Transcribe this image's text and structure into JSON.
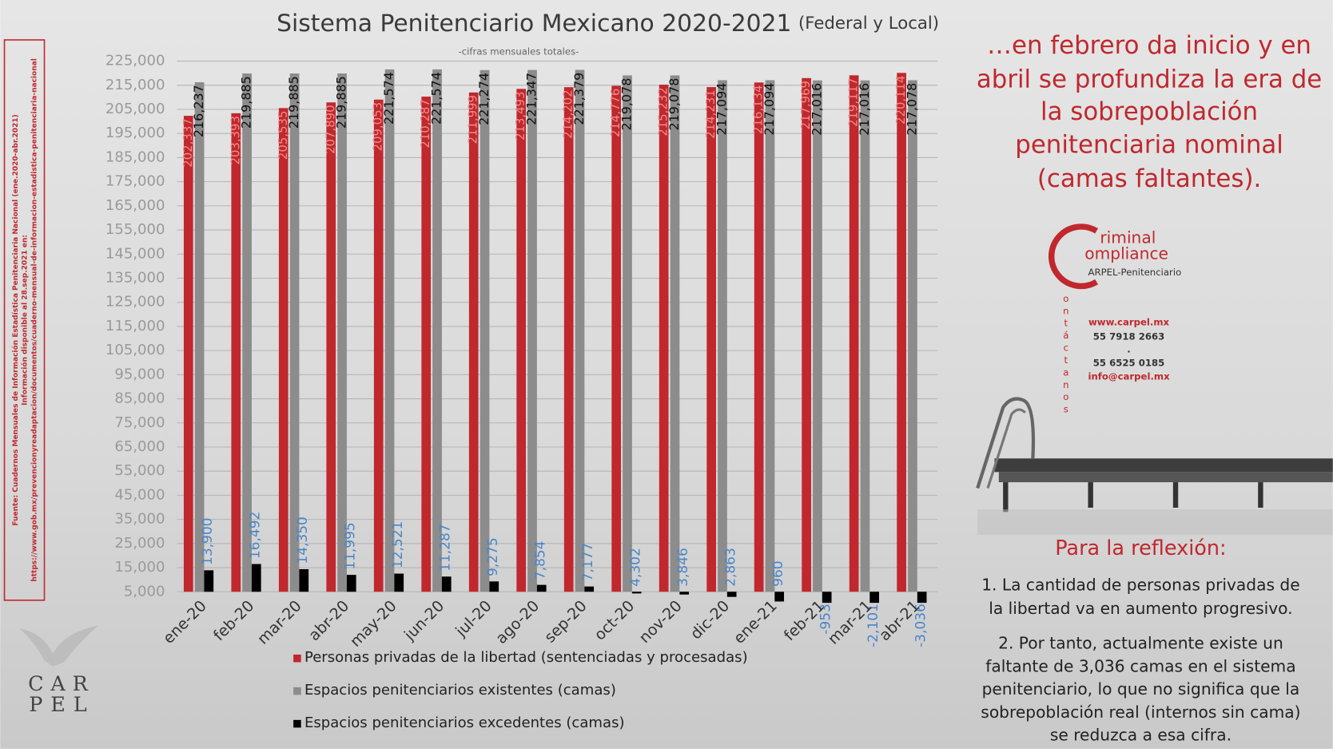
{
  "chart_data": {
    "type": "bar",
    "title": "Sistema Penitenciario Mexicano 2020-2021",
    "title_suffix": "(Federal y Local)",
    "subtitle": "-cifras mensuales totales-",
    "categories": [
      "ene-20",
      "feb-20",
      "mar-20",
      "abr-20",
      "may-20",
      "jun-20",
      "jul-20",
      "ago-20",
      "sep-20",
      "oct-20",
      "nov-20",
      "dic-20",
      "ene-21",
      "feb-21",
      "mar-21",
      "abr-21"
    ],
    "series": [
      {
        "name": "Personas privadas de la libertad (sentenciadas y procesadas)",
        "color": "#c0282d",
        "values": [
          202337,
          203393,
          205535,
          207890,
          209053,
          210287,
          211999,
          213493,
          214202,
          214776,
          215232,
          214231,
          216134,
          217969,
          219117,
          220114
        ],
        "value_labels": [
          "202,337",
          "203,393",
          "205,535",
          "207,890",
          "209,053",
          "210,287",
          "211,999",
          "213,493",
          "214,202",
          "214,776",
          "215,232",
          "214,231",
          "216,134",
          "217,969",
          "219,117",
          "220,114"
        ]
      },
      {
        "name": "Espacios penitenciarios existentes (camas)",
        "color": "#8c8c8c",
        "values": [
          216237,
          219885,
          219885,
          219885,
          221574,
          221574,
          221274,
          221347,
          221379,
          219078,
          219078,
          217094,
          217094,
          217016,
          217016,
          217078
        ],
        "value_labels": [
          "216,237",
          "219,885",
          "219,885",
          "219,885",
          "221,574",
          "221,574",
          "221,274",
          "221,347",
          "221,379",
          "219,078",
          "219,078",
          "217,094",
          "217,094",
          "217,016",
          "217,016",
          "217,078"
        ]
      },
      {
        "name": "Espacios penitenciarios excedentes (camas)",
        "color": "#000000",
        "values": [
          13900,
          16492,
          14350,
          11995,
          12521,
          11287,
          9275,
          7854,
          7177,
          4302,
          3846,
          2863,
          960,
          -953,
          -2101,
          -3036
        ],
        "value_labels": [
          "13,900",
          "16,492",
          "14,350",
          "11,995",
          "12,521",
          "11,287",
          "9,275",
          "7,854",
          "7,177",
          "4,302",
          "3,846",
          "2,863",
          "960",
          "-953",
          "-2,101",
          "-3,036"
        ]
      }
    ],
    "ylim": [
      5000,
      225000
    ],
    "yticks": [
      {
        "value": 5000,
        "label": "5,000"
      },
      {
        "value": 15000,
        "label": "15,000"
      },
      {
        "value": 25000,
        "label": "25,000"
      },
      {
        "value": 35000,
        "label": "35,000"
      },
      {
        "value": 45000,
        "label": "45,000"
      },
      {
        "value": 55000,
        "label": "55,000"
      },
      {
        "value": 65000,
        "label": "65,000"
      },
      {
        "value": 75000,
        "label": "75,000"
      },
      {
        "value": 85000,
        "label": "85,000"
      },
      {
        "value": 95000,
        "label": "95,000"
      },
      {
        "value": 105000,
        "label": "105,000"
      },
      {
        "value": 115000,
        "label": "115,000"
      },
      {
        "value": 125000,
        "label": "125,000"
      },
      {
        "value": 135000,
        "label": "135,000"
      },
      {
        "value": 145000,
        "label": "145,000"
      },
      {
        "value": 155000,
        "label": "155,000"
      },
      {
        "value": 165000,
        "label": "165,000"
      },
      {
        "value": 175000,
        "label": "175,000"
      },
      {
        "value": 185000,
        "label": "185,000"
      },
      {
        "value": 195000,
        "label": "195,000"
      },
      {
        "value": 205000,
        "label": "205,000"
      },
      {
        "value": 215000,
        "label": "215,000"
      },
      {
        "value": 225000,
        "label": "225,000"
      }
    ],
    "grid": true,
    "value_label_color": "#4a86c8"
  },
  "source": [
    "Fuente: Cuadernos Mensuales de Información Estadística Penitenciaria Nacional (ene.2020-abr.2021)",
    "Información disponible al 28.sep.2021 en:",
    "https://www.gob.mx/prevencionyreadaptacion/documentos/cuaderno-mensual-de-informacion-estadistica-penitenciaria-nacional"
  ],
  "headline": [
    "…en febrero da inicio y en",
    "abril se profundiza la era de",
    "la sobrepoblación",
    "penitenciaria nominal",
    "(camas faltantes)."
  ],
  "brand": {
    "line1": "riminal",
    "line2": "ompliance",
    "line3": "ARPEL-Penitenciario",
    "contact_letters": [
      "o",
      "n",
      "t",
      "á",
      "c",
      "t",
      "a",
      "n",
      "o",
      "s"
    ]
  },
  "contact": [
    "www.carpel.mx",
    "55 7918 2663",
    ".",
    "55 6525 0185",
    "info@carpel.mx"
  ],
  "reflection": {
    "title": "Para la reflexión:",
    "item1": [
      "1. La cantidad de personas privadas de",
      "la libertad va en aumento progresivo."
    ],
    "item2": [
      "2. Por tanto, actualmente existe un",
      "faltante de 3,036 camas en el sistema",
      "penitenciario, lo que no significa que la",
      "sobrepoblación real (internos sin cama)",
      "se reduzca a esa cifra."
    ]
  },
  "logo": {
    "row1": [
      "C",
      "A",
      "R"
    ],
    "row2": [
      "P",
      "E",
      "L"
    ]
  }
}
